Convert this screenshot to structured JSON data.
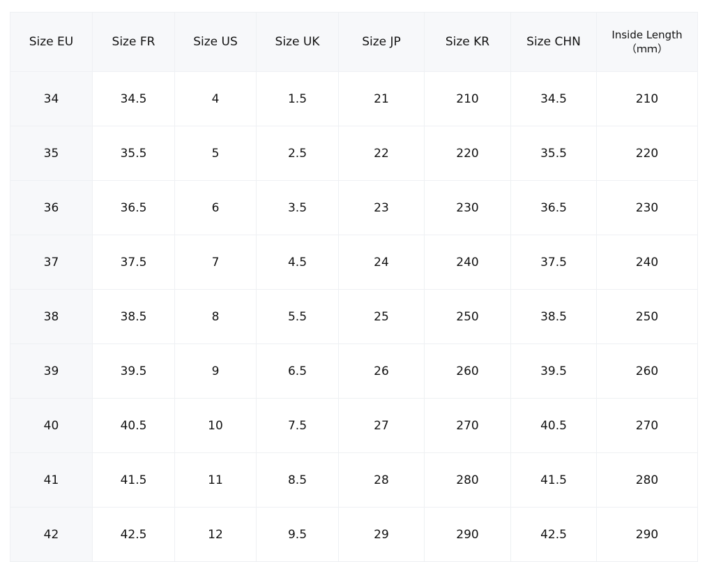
{
  "headers": [
    "Size EU",
    "Size FR",
    "Size US",
    "Size UK",
    "Size JP",
    "Size KR",
    "Size CHN",
    "Inside Length\n（ｍｍ）"
  ],
  "rows": [
    [
      "34",
      "34.5",
      "4",
      "1.5",
      "21",
      "210",
      "34.5",
      "210"
    ],
    [
      "35",
      "35.5",
      "5",
      "2.5",
      "22",
      "220",
      "35.5",
      "220"
    ],
    [
      "36",
      "36.5",
      "6",
      "3.5",
      "23",
      "230",
      "36.5",
      "230"
    ],
    [
      "37",
      "37.5",
      "7",
      "4.5",
      "24",
      "240",
      "37.5",
      "240"
    ],
    [
      "38",
      "38.5",
      "8",
      "5.5",
      "25",
      "250",
      "38.5",
      "250"
    ],
    [
      "39",
      "39.5",
      "9",
      "6.5",
      "26",
      "260",
      "39.5",
      "260"
    ],
    [
      "40",
      "40.5",
      "10",
      "7.5",
      "27",
      "270",
      "40.5",
      "270"
    ],
    [
      "41",
      "41.5",
      "11",
      "8.5",
      "28",
      "280",
      "41.5",
      "280"
    ],
    [
      "42",
      "42.5",
      "12",
      "9.5",
      "29",
      "290",
      "42.5",
      "290"
    ]
  ]
}
